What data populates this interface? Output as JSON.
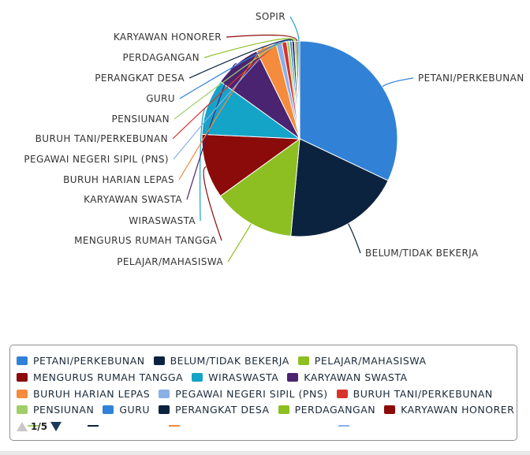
{
  "chart_data": {
    "type": "pie",
    "categories": [
      "PETANI/PERKEBUNAN",
      "BELUM/TIDAK BEKERJA",
      "PELAJAR/MAHASISWA",
      "MENGURUS RUMAH TANGGA",
      "WIRASWASTA",
      "KARYAWAN SWASTA",
      "BURUH HARIAN LEPAS",
      "PEGAWAI NEGERI SIPIL (PNS)",
      "BURUH TANI/PERKEBUNAN",
      "PENSIUNAN",
      "GURU",
      "PERANGKAT DESA",
      "PERDAGANGAN",
      "KARYAWAN HONORER",
      "SOPIR"
    ],
    "values": [
      33.0,
      20.0,
      14.0,
      11.0,
      9.5,
      8.0,
      3.5,
      1.0,
      0.8,
      0.5,
      0.4,
      0.4,
      0.3,
      0.3,
      0.3
    ],
    "colors": [
      "#3182d6",
      "#0c2340",
      "#8dbf23",
      "#8b0a0a",
      "#14a4c8",
      "#4a2470",
      "#f58b3c",
      "#8ab0e8",
      "#d8322c",
      "#a0cf6a",
      "#3182d6",
      "#0c2340",
      "#8dbf23",
      "#8b0a0a",
      "#14a4c8"
    ],
    "legend_position": "bottom"
  },
  "legend": {
    "rows": [
      [
        0,
        1,
        2
      ],
      [
        3,
        4,
        5
      ],
      [
        6,
        7,
        8
      ],
      [
        9,
        10,
        11,
        12,
        13
      ]
    ],
    "page": "1/5"
  }
}
